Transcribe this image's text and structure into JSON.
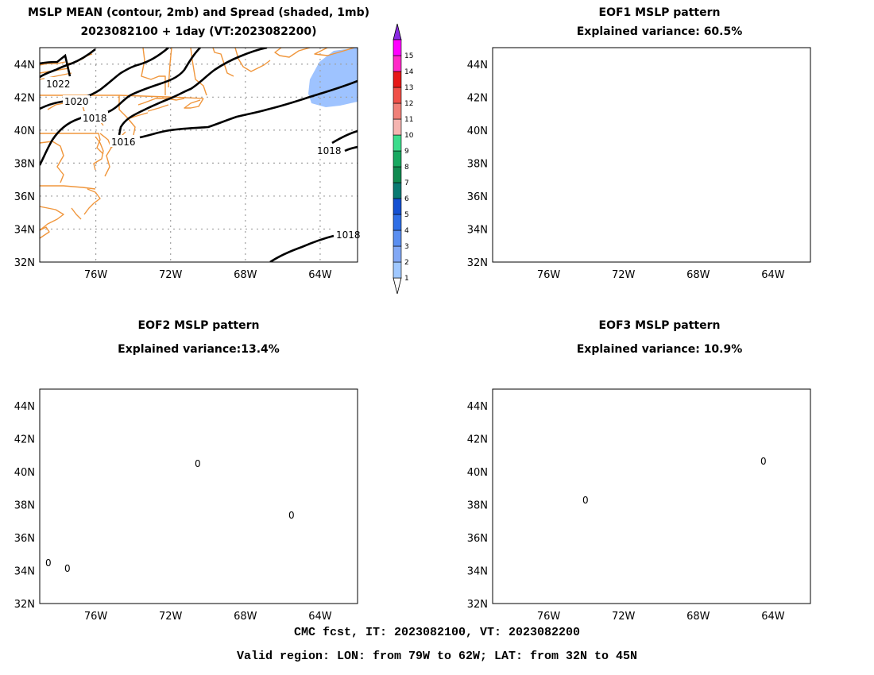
{
  "panels": [
    {
      "id": "mean",
      "title_line1": "MSLP MEAN (contour, 2mb) and Spread (shaded, 1mb)",
      "title_line2": "2023082100 + 1day (VT:2023082200)",
      "contour_labels": [
        "1022",
        "1020",
        "1018",
        "1016",
        "1018",
        "1018"
      ]
    },
    {
      "id": "eof1",
      "title_line1": "EOF1 MSLP pattern",
      "title_line2": "Explained variance: 60.5%",
      "contour_labels": []
    },
    {
      "id": "eof2",
      "title_line1": "EOF2 MSLP pattern",
      "title_line2": "Explained variance:13.4%",
      "contour_labels": [
        "0",
        "0",
        "0",
        "0"
      ]
    },
    {
      "id": "eof3",
      "title_line1": "EOF3 MSLP pattern",
      "title_line2": "Explained variance: 10.9%",
      "contour_labels": [
        "0",
        "0"
      ]
    }
  ],
  "axes": {
    "lat_ticks": [
      "44N",
      "42N",
      "40N",
      "38N",
      "36N",
      "34N",
      "32N"
    ],
    "lon_ticks": [
      "76W",
      "72W",
      "68W",
      "64W"
    ]
  },
  "colorbar": {
    "labels": [
      "1",
      "2",
      "3",
      "4",
      "5",
      "6",
      "7",
      "8",
      "9",
      "10",
      "11",
      "12",
      "13",
      "14",
      "15"
    ],
    "colors": [
      "#a0c8ff",
      "#82a8f5",
      "#5a8ef0",
      "#2f6ee6",
      "#1450d2",
      "#0a7a72",
      "#108a50",
      "#18a860",
      "#3cdc8c",
      "#f5b4b0",
      "#f08078",
      "#f05048",
      "#e61818",
      "#ff28c8",
      "#ff00ff"
    ],
    "top_color": "#8a2be2"
  },
  "footer": {
    "line1": "CMC fcst, IT: 2023082100, VT: 2023082200",
    "line2": "Valid region: LON: from 79W to 62W; LAT: from 32N to 45N"
  },
  "colors": {
    "coast": "#f0963c",
    "grid": "#a0a0a0",
    "contour": "#000000",
    "spread": "#9ec3ff"
  }
}
